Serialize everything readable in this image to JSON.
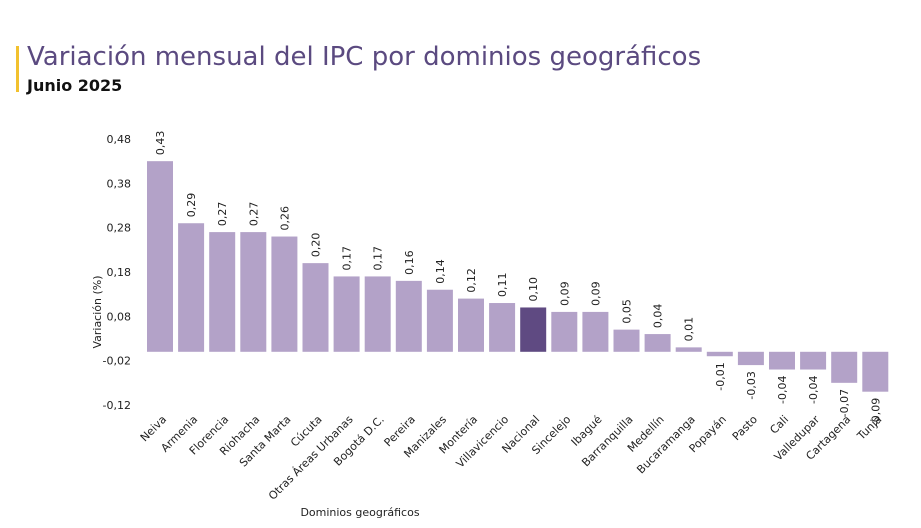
{
  "chart_data": {
    "type": "bar",
    "title": "Variación mensual del IPC por dominios geográficos",
    "subtitle": "Junio 2025",
    "xlabel": "Dominios geográficos",
    "ylabel": "Variación (%)",
    "ylim": [
      -0.12,
      0.48
    ],
    "yticks": [
      "0,48",
      "0,38",
      "0,28",
      "0,18",
      "0,08",
      "-0,02",
      "-0,12"
    ],
    "ytick_values": [
      0.48,
      0.38,
      0.28,
      0.18,
      0.08,
      -0.02,
      -0.12
    ],
    "grid": false,
    "categories": [
      "Neiva",
      "Armenia",
      "Florencia",
      "Riohacha",
      "Santa Marta",
      "Cúcuta",
      "Otras Áreas Urbanas",
      "Bogotá D.C.",
      "Pereira",
      "Manizales",
      "Montería",
      "Villavicencio",
      "Nacional",
      "Sincelejo",
      "Ibagué",
      "Barranquilla",
      "Medellín",
      "Bucaramanga",
      "Popayán",
      "Pasto",
      "Cali",
      "Valledupar",
      "Cartagena",
      "Tunja"
    ],
    "values": [
      0.43,
      0.29,
      0.27,
      0.27,
      0.26,
      0.2,
      0.17,
      0.17,
      0.16,
      0.14,
      0.12,
      0.11,
      0.1,
      0.09,
      0.09,
      0.05,
      0.04,
      0.01,
      -0.01,
      -0.03,
      -0.04,
      -0.04,
      -0.07,
      -0.09
    ],
    "labels": [
      "0,43",
      "0,29",
      "0,27",
      "0,27",
      "0,26",
      "0,20",
      "0,17",
      "0,17",
      "0,16",
      "0,14",
      "0,12",
      "0,11",
      "0,10",
      "0,09",
      "0,09",
      "0,05",
      "0,04",
      "0,01",
      "-0,01",
      "-0,03",
      "-0,04",
      "-0,04",
      "-0,07",
      "-0,09"
    ],
    "highlight_category": "Nacional"
  },
  "colors": {
    "bar": "#b3a2c8",
    "highlight": "#5f4a82",
    "title": "#5b4a80",
    "accent": "#f2c12e"
  }
}
